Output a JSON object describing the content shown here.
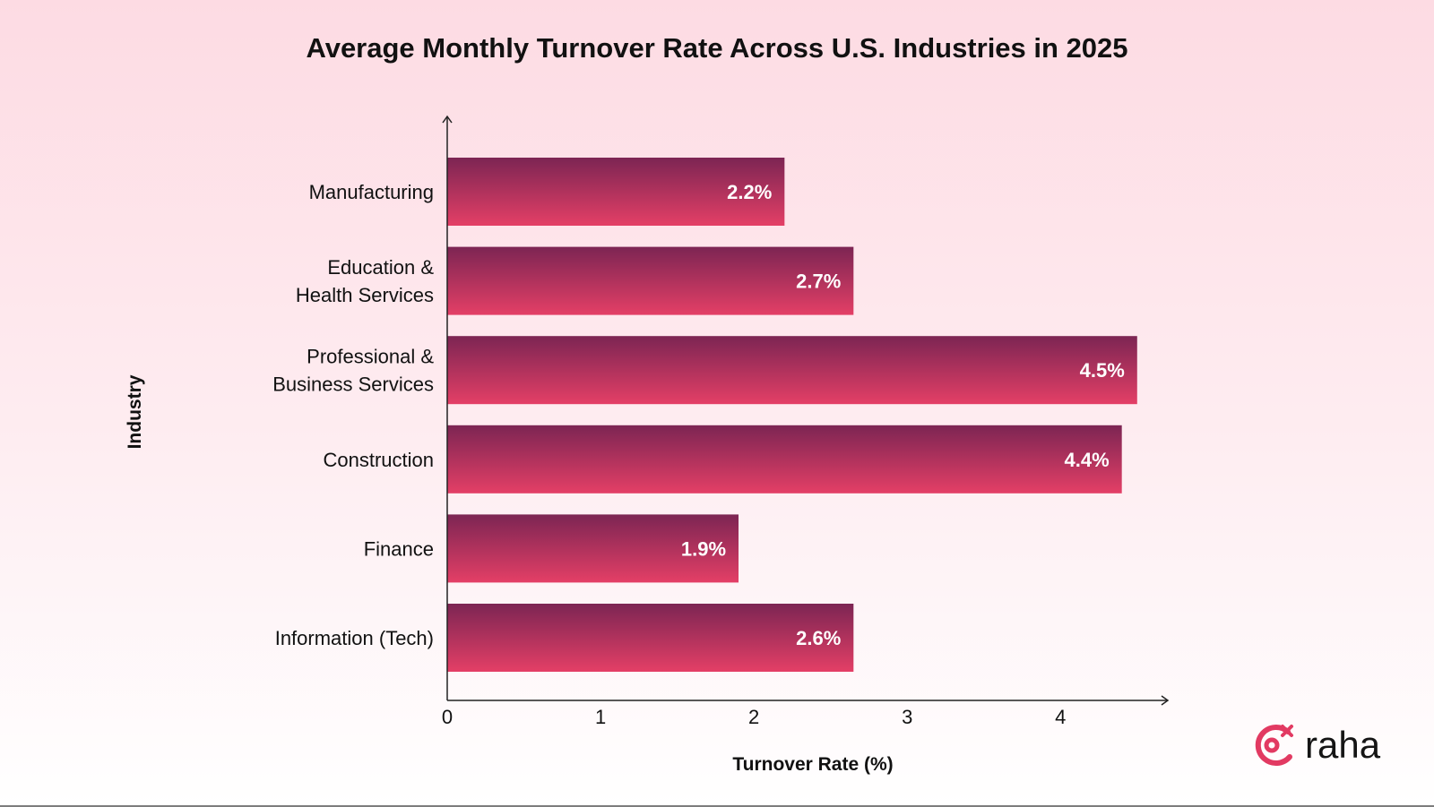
{
  "chart_data": {
    "type": "bar",
    "orientation": "horizontal",
    "title": "Average Monthly Turnover Rate Across U.S. Industries in 2025",
    "xlabel": "Turnover Rate (%)",
    "ylabel": "Industry",
    "categories": [
      [
        "Manufacturing"
      ],
      [
        "Education &",
        "Health Services"
      ],
      [
        "Professional &",
        "Business Services"
      ],
      [
        "Construction"
      ],
      [
        "Finance"
      ],
      [
        "Information (Tech)"
      ]
    ],
    "values": [
      2.2,
      2.65,
      4.5,
      4.4,
      1.9,
      2.65
    ],
    "value_labels": [
      "2.2%",
      "2.7%",
      "4.5%",
      "4.4%",
      "1.9%",
      "2.6%"
    ],
    "xticks": [
      0,
      1,
      2,
      3,
      4
    ],
    "tick_labels": [
      "0",
      "1",
      "2",
      "3",
      "4"
    ],
    "xlim": [
      0,
      4.7
    ],
    "grid": false,
    "bar_color_top": "#7c2553",
    "bar_color_bottom": "#e43f66"
  },
  "brand": {
    "name": "raha",
    "accent_color": "#e23a62",
    "icon": "refresh-target-icon"
  }
}
